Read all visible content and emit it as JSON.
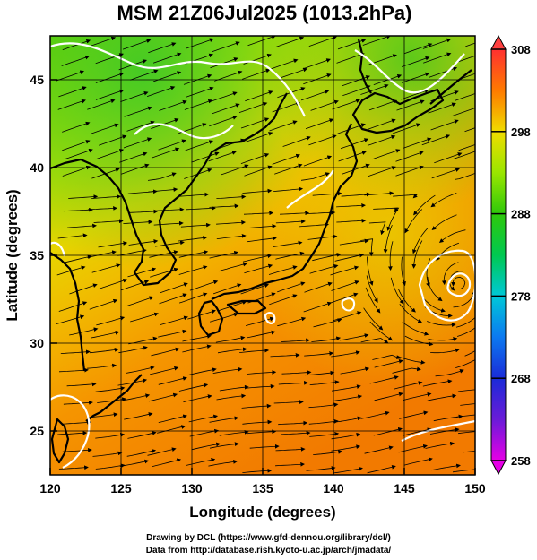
{
  "title": "MSM 21Z06Jul2025 (1013.2hPa)",
  "x_axis": {
    "label": "Longitude (degrees)",
    "ticks": [
      120,
      125,
      130,
      135,
      140,
      145,
      150
    ]
  },
  "y_axis": {
    "label": "Latitude  (degrees)",
    "ticks": [
      25,
      30,
      35,
      40,
      45
    ]
  },
  "map": {
    "lon_range": [
      120,
      150
    ],
    "lat_range": [
      22.5,
      47.5
    ],
    "grid": true
  },
  "colorbar": {
    "tick_labels": [
      "308",
      "298",
      "288",
      "278",
      "268",
      "258"
    ],
    "range": [
      258,
      308
    ],
    "colors": {
      "c258": "#e600e6",
      "c263": "#6a1bd8",
      "c268": "#1a2bd8",
      "c273": "#0c79f0",
      "c278": "#00c8d8",
      "c283": "#00c850",
      "c288": "#2ec80a",
      "c293": "#9ae600",
      "c298": "#f0dc00",
      "c303": "#ff7a00",
      "c308": "#ff3030"
    }
  },
  "credits": [
    "Drawing by DCL (https://www.gfd-dennou.org/library/dcl/)",
    "Data from http://database.rish.kyoto-u.ac.jp/arch/jmadata/"
  ]
}
